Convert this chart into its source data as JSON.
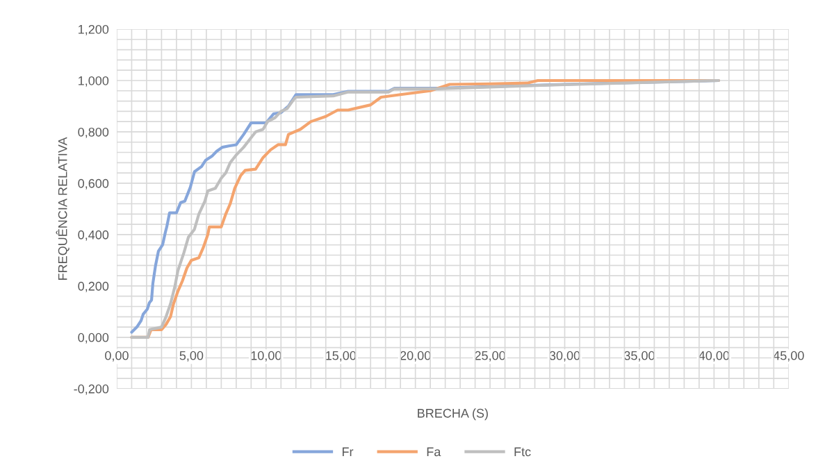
{
  "chart_data": {
    "type": "line",
    "xlabel": "BRECHA (S)",
    "ylabel": "FREQUÊNCIA RELATIVA",
    "xlim": [
      0,
      45
    ],
    "ylim": [
      -0.2,
      1.2
    ],
    "xticks": [
      {
        "value": 0,
        "label": "0,00"
      },
      {
        "value": 5,
        "label": "5,00"
      },
      {
        "value": 10,
        "label": "10,00"
      },
      {
        "value": 15,
        "label": "15,00"
      },
      {
        "value": 20,
        "label": "20,00"
      },
      {
        "value": 25,
        "label": "25,00"
      },
      {
        "value": 30,
        "label": "30,00"
      },
      {
        "value": 35,
        "label": "35,00"
      },
      {
        "value": 40,
        "label": "40,00"
      },
      {
        "value": 45,
        "label": "45,00"
      }
    ],
    "yticks": [
      {
        "value": -0.2,
        "label": "-0,200"
      },
      {
        "value": 0,
        "label": "0,000"
      },
      {
        "value": 0.2,
        "label": "0,200"
      },
      {
        "value": 0.4,
        "label": "0,400"
      },
      {
        "value": 0.6,
        "label": "0,600"
      },
      {
        "value": 0.8,
        "label": "0,800"
      },
      {
        "value": 1.0,
        "label": "1,000"
      },
      {
        "value": 1.2,
        "label": "1,200"
      }
    ],
    "grid": true,
    "legend": "bottom",
    "marker": "none",
    "line_style": "solid",
    "series": [
      {
        "name": "Fr",
        "color": "#86a6db",
        "x": [
          1.0,
          1.35,
          1.63,
          1.77,
          2.05,
          2.19,
          2.33,
          2.42,
          2.6,
          2.79,
          3.07,
          3.26,
          3.35,
          3.54,
          4.0,
          4.28,
          4.56,
          4.93,
          5.21,
          5.68,
          5.96,
          6.37,
          6.7,
          7.07,
          7.5,
          8.0,
          8.5,
          9.0,
          10.0,
          10.5,
          11.0,
          11.5,
          12.0,
          14.5,
          15.5,
          18.2,
          18.6,
          21.5,
          30.0,
          40.3
        ],
        "values": [
          0.02,
          0.04,
          0.065,
          0.09,
          0.11,
          0.135,
          0.145,
          0.21,
          0.28,
          0.335,
          0.36,
          0.41,
          0.43,
          0.485,
          0.485,
          0.525,
          0.53,
          0.585,
          0.645,
          0.665,
          0.69,
          0.705,
          0.725,
          0.74,
          0.745,
          0.75,
          0.79,
          0.835,
          0.835,
          0.87,
          0.875,
          0.9,
          0.945,
          0.945,
          0.958,
          0.958,
          0.97,
          0.97,
          0.985,
          1.0
        ]
      },
      {
        "name": "Fa",
        "color": "#f4a46e",
        "x": [
          1.0,
          2.1,
          2.3,
          3.0,
          3.3,
          3.6,
          3.8,
          4.1,
          4.4,
          4.7,
          5.0,
          5.5,
          5.8,
          6.1,
          6.2,
          7.0,
          7.3,
          7.6,
          7.9,
          8.3,
          8.6,
          9.3,
          9.8,
          10.3,
          10.8,
          11.3,
          11.5,
          12.3,
          13.0,
          14.0,
          14.8,
          15.5,
          17.0,
          17.7,
          19.0,
          21.0,
          22.3,
          25.0,
          27.5,
          28.2,
          40.3
        ],
        "values": [
          0.0,
          0.0,
          0.03,
          0.03,
          0.05,
          0.08,
          0.13,
          0.18,
          0.22,
          0.27,
          0.3,
          0.31,
          0.35,
          0.4,
          0.43,
          0.43,
          0.48,
          0.52,
          0.58,
          0.63,
          0.65,
          0.655,
          0.7,
          0.73,
          0.75,
          0.75,
          0.79,
          0.81,
          0.84,
          0.86,
          0.885,
          0.885,
          0.905,
          0.935,
          0.945,
          0.96,
          0.985,
          0.987,
          0.99,
          1.0,
          1.0
        ]
      },
      {
        "name": "Ftc",
        "color": "#bfbfbf",
        "x": [
          1.0,
          2.1,
          2.2,
          3.0,
          3.3,
          3.6,
          3.9,
          4.1,
          4.5,
          4.8,
          5.2,
          5.5,
          5.9,
          6.1,
          6.6,
          7.0,
          7.3,
          7.6,
          8.0,
          8.5,
          8.9,
          9.3,
          9.8,
          10.1,
          10.6,
          11.0,
          11.4,
          11.9,
          12.0,
          14.5,
          15.5,
          18.2,
          18.6,
          21.5,
          30.0,
          40.3
        ],
        "values": [
          0.0,
          0.0,
          0.03,
          0.04,
          0.08,
          0.13,
          0.2,
          0.26,
          0.33,
          0.39,
          0.42,
          0.48,
          0.53,
          0.57,
          0.58,
          0.62,
          0.64,
          0.68,
          0.71,
          0.74,
          0.77,
          0.8,
          0.81,
          0.84,
          0.855,
          0.88,
          0.89,
          0.93,
          0.935,
          0.94,
          0.955,
          0.955,
          0.968,
          0.968,
          0.984,
          1.0
        ]
      }
    ]
  }
}
